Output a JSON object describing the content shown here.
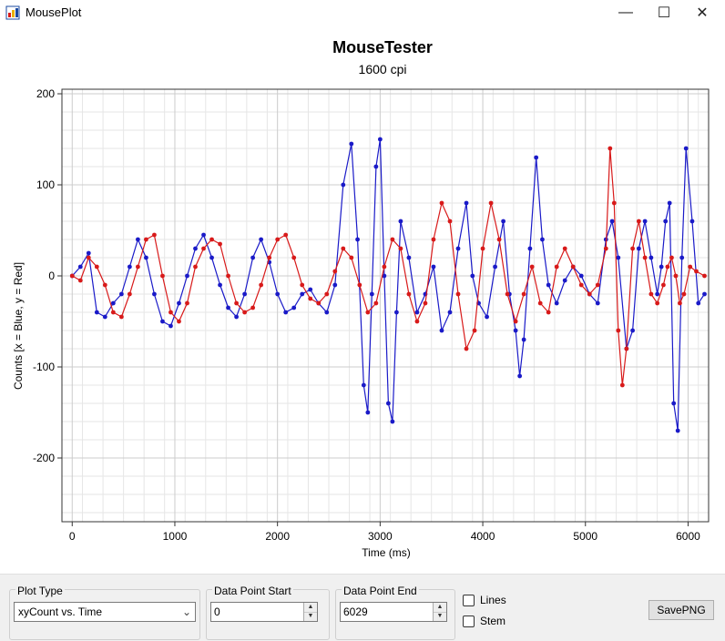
{
  "window": {
    "title": "MousePlot",
    "minimize_icon": "minimize-icon",
    "maximize_icon": "maximize-icon",
    "close_icon": "close-icon"
  },
  "chart_data": {
    "type": "scatter",
    "title": "MouseTester",
    "subtitle": "1600 cpi",
    "xlabel": "Time (ms)",
    "ylabel": "Counts [x = Blue, y = Red]",
    "xlim": [
      -100,
      6200
    ],
    "ylim": [
      -270,
      205
    ],
    "xticks": [
      0,
      1000,
      2000,
      3000,
      4000,
      5000,
      6000
    ],
    "yticks": [
      -200,
      -100,
      0,
      100,
      200
    ],
    "grid": true,
    "legend": "none",
    "series": [
      {
        "color": "#1a1ac8",
        "x": [
          0,
          80,
          160,
          240,
          320,
          400,
          480,
          560,
          640,
          720,
          800,
          880,
          960,
          1040,
          1120,
          1200,
          1280,
          1360,
          1440,
          1520,
          1600,
          1680,
          1760,
          1840,
          1920,
          2000,
          2080,
          2160,
          2240,
          2320,
          2400,
          2480,
          2560,
          2640,
          2720,
          2780,
          2840,
          2880,
          2920,
          2960,
          3000,
          3040,
          3080,
          3120,
          3160,
          3200,
          3280,
          3360,
          3440,
          3520,
          3600,
          3680,
          3760,
          3840,
          3900,
          3960,
          4040,
          4120,
          4200,
          4260,
          4320,
          4360,
          4400,
          4460,
          4520,
          4580,
          4640,
          4720,
          4800,
          4880,
          4960,
          5040,
          5120,
          5200,
          5260,
          5320,
          5400,
          5460,
          5520,
          5580,
          5640,
          5700,
          5740,
          5780,
          5820,
          5860,
          5900,
          5940,
          5980,
          6040,
          6100,
          6160
        ],
        "y": [
          0,
          10,
          25,
          -40,
          -45,
          -30,
          -20,
          10,
          40,
          20,
          -20,
          -50,
          -55,
          -30,
          0,
          30,
          45,
          20,
          -10,
          -35,
          -45,
          -20,
          20,
          40,
          15,
          -20,
          -40,
          -35,
          -20,
          -15,
          -30,
          -40,
          -10,
          100,
          145,
          40,
          -120,
          -150,
          -20,
          120,
          150,
          0,
          -140,
          -160,
          -40,
          60,
          20,
          -40,
          -20,
          10,
          -60,
          -40,
          30,
          80,
          0,
          -30,
          -45,
          10,
          60,
          -20,
          -60,
          -110,
          -70,
          30,
          130,
          40,
          -10,
          -30,
          -5,
          10,
          0,
          -20,
          -30,
          40,
          60,
          20,
          -80,
          -60,
          30,
          60,
          20,
          -20,
          10,
          60,
          80,
          -140,
          -170,
          20,
          140,
          60,
          -30,
          -20
        ]
      },
      {
        "color": "#d81a1a",
        "x": [
          0,
          80,
          160,
          240,
          320,
          400,
          480,
          560,
          640,
          720,
          800,
          880,
          960,
          1040,
          1120,
          1200,
          1280,
          1360,
          1440,
          1520,
          1600,
          1680,
          1760,
          1840,
          1920,
          2000,
          2080,
          2160,
          2240,
          2320,
          2400,
          2480,
          2560,
          2640,
          2720,
          2800,
          2880,
          2960,
          3040,
          3120,
          3200,
          3280,
          3360,
          3440,
          3520,
          3600,
          3680,
          3760,
          3840,
          3920,
          4000,
          4080,
          4160,
          4240,
          4320,
          4400,
          4480,
          4560,
          4640,
          4720,
          4800,
          4880,
          4960,
          5040,
          5120,
          5200,
          5240,
          5280,
          5320,
          5360,
          5400,
          5460,
          5520,
          5580,
          5640,
          5700,
          5760,
          5800,
          5840,
          5880,
          5920,
          5960,
          6020,
          6080,
          6160
        ],
        "y": [
          0,
          -5,
          20,
          10,
          -10,
          -40,
          -45,
          -20,
          10,
          40,
          45,
          0,
          -40,
          -50,
          -30,
          10,
          30,
          40,
          35,
          0,
          -30,
          -40,
          -35,
          -10,
          20,
          40,
          45,
          20,
          -10,
          -25,
          -30,
          -20,
          5,
          30,
          20,
          -10,
          -40,
          -30,
          10,
          40,
          30,
          -20,
          -50,
          -30,
          40,
          80,
          60,
          -20,
          -80,
          -60,
          30,
          80,
          40,
          -20,
          -50,
          -20,
          10,
          -30,
          -40,
          10,
          30,
          10,
          -10,
          -20,
          -10,
          30,
          140,
          80,
          -60,
          -120,
          -80,
          30,
          60,
          20,
          -20,
          -30,
          -10,
          10,
          20,
          0,
          -30,
          -20,
          10,
          5,
          0
        ]
      }
    ]
  },
  "controls": {
    "plot_type_label": "Plot Type",
    "plot_type_value": "xyCount vs. Time",
    "data_start_label": "Data Point Start",
    "data_start_value": "0",
    "data_end_label": "Data Point End",
    "data_end_value": "6029",
    "lines_label": "Lines",
    "stem_label": "Stem",
    "save_label": "SavePNG"
  }
}
